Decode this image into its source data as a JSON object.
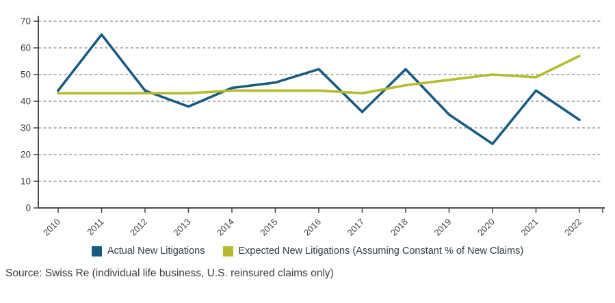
{
  "chart_data": {
    "type": "line",
    "title": "",
    "xlabel": "",
    "ylabel": "",
    "categories": [
      "2010",
      "2011",
      "2012",
      "2013",
      "2014",
      "2015",
      "2016",
      "2017",
      "2018",
      "2019",
      "2020",
      "2021",
      "2022"
    ],
    "series": [
      {
        "name": "Actual New Litigations",
        "color": "#175a82",
        "values": [
          44,
          65,
          44,
          38,
          45,
          47,
          52,
          36,
          52,
          35,
          24,
          44,
          33
        ]
      },
      {
        "name": "Expected New Litigations (Assuming Constant % of New Claims)",
        "color": "#b4bb2d",
        "values": [
          43,
          43,
          43,
          43,
          44,
          44,
          44,
          43,
          46,
          48,
          50,
          49,
          57
        ]
      }
    ],
    "ylim": [
      0,
      70
    ],
    "ytick_step": 10,
    "grid": "horizontal-dashed",
    "legend_position": "bottom"
  },
  "source": {
    "text": "Source: Swiss Re (individual life business, U.S. reinsured claims only)"
  },
  "style": {
    "axis_color": "#4b4b4b",
    "grid_color": "#a6a6a6",
    "tick_label_color": "#3d3d3d",
    "legend_text_color": "#2b3a45",
    "source_text_color": "#3b3b3b"
  }
}
